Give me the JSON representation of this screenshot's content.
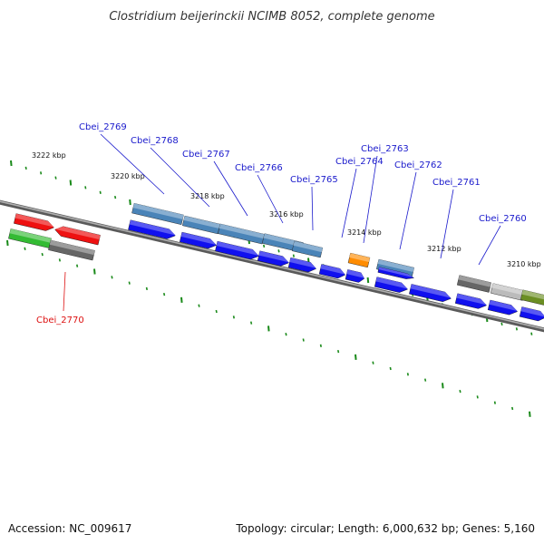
{
  "title": "Clostridium beijerinckii NCIMB 8052, complete genome",
  "footer": {
    "accession": "Accession: NC_009617",
    "topology": "Topology: circular; Length: 6,000,632 bp; Genes: 5,160"
  },
  "colors": {
    "backbone": "#7f7f7f",
    "tick": "#1a8a1a",
    "gene_label": "#1a1acc",
    "selected_label": "#dd1111",
    "cds_arrow": "#1010ee",
    "gene_blue": "#4a84b8",
    "gene_red": "#ee1111",
    "gene_green": "#33bb33",
    "gene_gray": "#666666",
    "gene_lightgray": "#bbbbbb",
    "gene_olive": "#6b8e23",
    "gene_orange": "#ff8c00"
  },
  "scale_labels": [
    {
      "text": "3222 kbp",
      "kbp": 3222
    },
    {
      "text": "3220 kbp",
      "kbp": 3220
    },
    {
      "text": "3218 kbp",
      "kbp": 3218
    },
    {
      "text": "3216 kbp",
      "kbp": 3216
    },
    {
      "text": "3214 kbp",
      "kbp": 3214
    },
    {
      "text": "3212 kbp",
      "kbp": 3212
    },
    {
      "text": "3210 kbp",
      "kbp": 3210
    }
  ],
  "genes": [
    {
      "name": "Cbei_2770",
      "selected": true
    },
    {
      "name": "Cbei_2769"
    },
    {
      "name": "Cbei_2768"
    },
    {
      "name": "Cbei_2767"
    },
    {
      "name": "Cbei_2766"
    },
    {
      "name": "Cbei_2765"
    },
    {
      "name": "Cbei_2764"
    },
    {
      "name": "Cbei_2763"
    },
    {
      "name": "Cbei_2762"
    },
    {
      "name": "Cbei_2761"
    },
    {
      "name": "Cbei_2760"
    }
  ]
}
